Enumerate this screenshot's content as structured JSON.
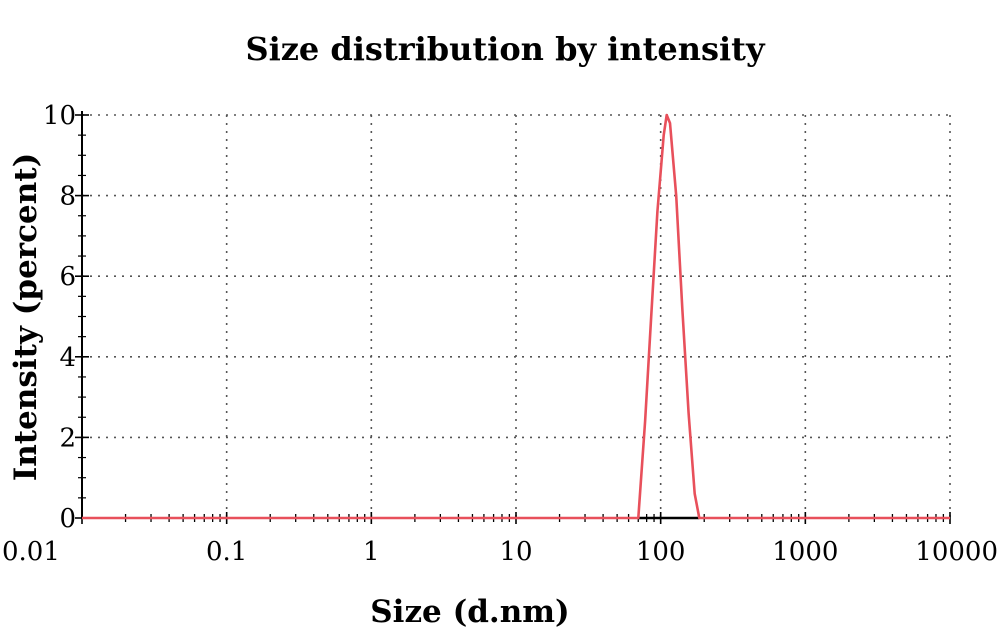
{
  "chart_data": {
    "type": "line",
    "title": "Size distribution by intensity",
    "xlabel": "Size (d.nm)",
    "ylabel": "Intensity (percent)",
    "x_scale": "log",
    "xlim": [
      0.01,
      10000
    ],
    "ylim": [
      0,
      10
    ],
    "x_ticks": [
      "0.01",
      "0.1",
      "1",
      "10",
      "100",
      "1000",
      "10000"
    ],
    "y_ticks": [
      "0",
      "2",
      "4",
      "6",
      "8",
      "10"
    ],
    "grid": true,
    "series": [
      {
        "color": "#e8505b",
        "x": [
          0.01,
          70,
          78,
          86,
          95,
          105,
          110,
          116,
          128,
          141,
          156,
          172,
          185,
          10000
        ],
        "y": [
          0,
          0,
          2.4,
          5.0,
          7.6,
          9.5,
          10.0,
          9.8,
          8.0,
          5.2,
          2.6,
          0.6,
          0,
          0
        ]
      }
    ]
  }
}
